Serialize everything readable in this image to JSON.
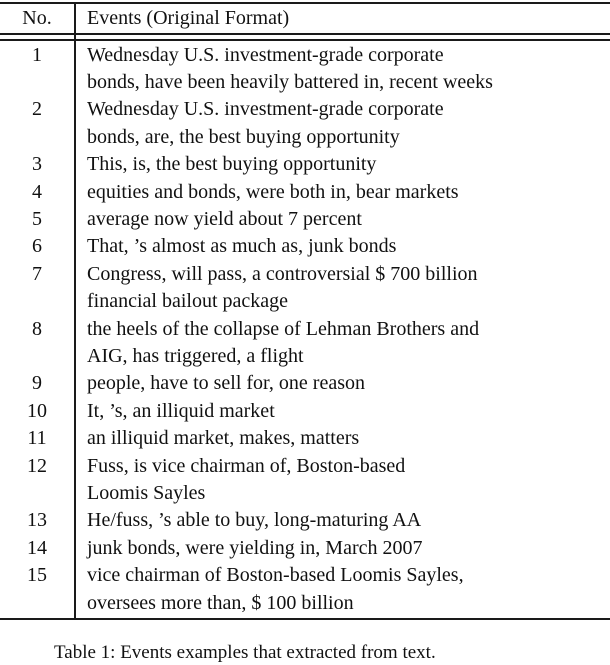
{
  "table": {
    "header": {
      "no": "No.",
      "events": "Events (Original Format)"
    },
    "rows": [
      {
        "no": "1",
        "text": "Wednesday U.S. investment-grade corporate\nbonds, have been heavily battered in, recent weeks"
      },
      {
        "no": "2",
        "text": "Wednesday U.S. investment-grade corporate\nbonds, are, the best buying opportunity"
      },
      {
        "no": "3",
        "text": "This, is, the best buying opportunity"
      },
      {
        "no": "4",
        "text": "equities and bonds, were both in, bear markets"
      },
      {
        "no": "5",
        "text": "average now yield about 7 percent"
      },
      {
        "no": "6",
        "text": "That, ’s almost as much as, junk bonds"
      },
      {
        "no": "7",
        "text": "Congress, will pass, a controversial $ 700 billion\nfinancial bailout package"
      },
      {
        "no": "8",
        "text": "the heels of the collapse of Lehman Brothers and\nAIG, has triggered, a flight"
      },
      {
        "no": "9",
        "text": "people, have to sell for, one reason"
      },
      {
        "no": "10",
        "text": "It, ’s, an illiquid market"
      },
      {
        "no": "11",
        "text": "an illiquid market, makes, matters"
      },
      {
        "no": "12",
        "text": "Fuss, is vice chairman of, Boston-based\nLoomis Sayles"
      },
      {
        "no": "13",
        "text": "He/fuss, ’s able to buy, long-maturing AA"
      },
      {
        "no": "14",
        "text": "junk bonds, were yielding in, March 2007"
      },
      {
        "no": "15",
        "text": "vice chairman of Boston-based Loomis Sayles,\noversees more than, $ 100 billion"
      }
    ]
  },
  "caption": {
    "text": "Table 1: Events examples that extracted from text."
  }
}
